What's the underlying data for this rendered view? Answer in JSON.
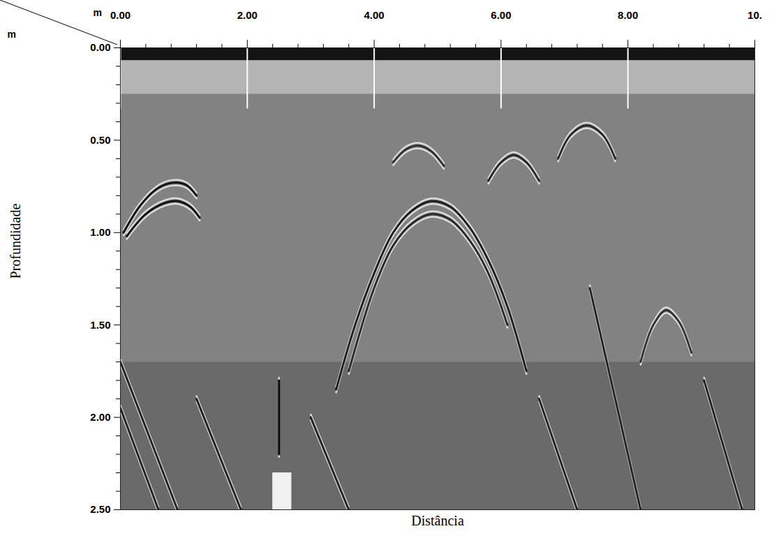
{
  "chart_data": {
    "type": "radargram",
    "x_label": "Distância",
    "y_label": "Profundidade",
    "x_unit": "m",
    "y_unit": "m",
    "xlim": [
      0,
      10
    ],
    "ylim": [
      0,
      2.5
    ],
    "xticks": [
      {
        "value": 0,
        "label": "0.00"
      },
      {
        "value": 2,
        "label": "2.00"
      },
      {
        "value": 4,
        "label": "4.00"
      },
      {
        "value": 6,
        "label": "6.00"
      },
      {
        "value": 8,
        "label": "8.00"
      },
      {
        "value": 10,
        "label": "10."
      }
    ],
    "x_minor_ticks": [
      0.4,
      0.8,
      1.2,
      1.6,
      2.4,
      2.8,
      3.2,
      3.6,
      4.4,
      4.8,
      5.2,
      5.6,
      6.4,
      6.8,
      7.2,
      7.6,
      8.4,
      8.8,
      9.2,
      9.6
    ],
    "yticks": [
      {
        "value": 0,
        "label": "0.00"
      },
      {
        "value": 0.5,
        "label": "0.50"
      },
      {
        "value": 1,
        "label": "1.00"
      },
      {
        "value": 1.5,
        "label": "1.50"
      },
      {
        "value": 2,
        "label": "2.00"
      },
      {
        "value": 2.5,
        "label": "2.50"
      }
    ],
    "y_minor_ticks": [
      0.1,
      0.2,
      0.3,
      0.4,
      0.6,
      0.7,
      0.8,
      0.9,
      1.1,
      1.2,
      1.3,
      1.4,
      1.6,
      1.7,
      1.8,
      1.9,
      2.1,
      2.2,
      2.3,
      2.4
    ],
    "zones": [
      {
        "x": [
          0,
          10
        ],
        "depth": [
          0,
          0.07
        ],
        "color": "#141414"
      },
      {
        "x": [
          0,
          10
        ],
        "depth": [
          0.07,
          0.25
        ],
        "color": "#b4b4b4"
      },
      {
        "x": [
          0,
          10
        ],
        "depth": [
          0.25,
          1.7
        ],
        "color": "#828282"
      },
      {
        "x": [
          0,
          10
        ],
        "depth": [
          1.7,
          2.5
        ],
        "color": "#6a6a6a"
      },
      {
        "x": [
          2.4,
          2.7
        ],
        "depth": [
          2.3,
          2.5
        ],
        "color": "#f0f0f0"
      }
    ],
    "marker_lines": {
      "x": [
        0,
        2,
        4,
        6,
        8
      ],
      "depth": [
        0,
        0.33
      ],
      "color": "#ffffff"
    },
    "reflections": [
      {
        "color": "#111111",
        "points": [
          [
            0.05,
            1.0
          ],
          [
            0.3,
            0.86
          ],
          [
            0.55,
            0.77
          ],
          [
            0.75,
            0.735
          ],
          [
            0.9,
            0.73
          ],
          [
            1.05,
            0.745
          ],
          [
            1.2,
            0.8
          ]
        ]
      },
      {
        "color": "#111111",
        "points": [
          [
            0.1,
            1.02
          ],
          [
            0.4,
            0.9
          ],
          [
            0.7,
            0.84
          ],
          [
            0.9,
            0.83
          ],
          [
            1.1,
            0.86
          ],
          [
            1.25,
            0.92
          ]
        ]
      },
      {
        "color": "#1e1e1e",
        "points": [
          [
            3.4,
            1.85
          ],
          [
            3.7,
            1.5
          ],
          [
            4.0,
            1.22
          ],
          [
            4.3,
            1.0
          ],
          [
            4.6,
            0.88
          ],
          [
            4.9,
            0.83
          ],
          [
            5.2,
            0.86
          ],
          [
            5.5,
            0.97
          ],
          [
            5.8,
            1.15
          ],
          [
            6.1,
            1.4
          ],
          [
            6.4,
            1.75
          ]
        ]
      },
      {
        "color": "#2a2a2a",
        "points": [
          [
            3.6,
            1.75
          ],
          [
            4.0,
            1.3
          ],
          [
            4.3,
            1.07
          ],
          [
            4.6,
            0.95
          ],
          [
            4.9,
            0.9
          ],
          [
            5.2,
            0.93
          ],
          [
            5.5,
            1.04
          ],
          [
            5.8,
            1.22
          ],
          [
            6.1,
            1.5
          ]
        ]
      },
      {
        "color": "#2a2a2a",
        "points": [
          [
            5.8,
            0.72
          ],
          [
            6.0,
            0.62
          ],
          [
            6.2,
            0.58
          ],
          [
            6.4,
            0.62
          ],
          [
            6.6,
            0.72
          ]
        ]
      },
      {
        "color": "#2a2a2a",
        "points": [
          [
            6.9,
            0.6
          ],
          [
            7.1,
            0.47
          ],
          [
            7.35,
            0.42
          ],
          [
            7.6,
            0.47
          ],
          [
            7.8,
            0.6
          ]
        ]
      },
      {
        "color": "#333333",
        "points": [
          [
            4.3,
            0.62
          ],
          [
            4.5,
            0.55
          ],
          [
            4.7,
            0.53
          ],
          [
            4.9,
            0.56
          ],
          [
            5.1,
            0.64
          ]
        ]
      },
      {
        "color": "#333333",
        "points": [
          [
            8.2,
            1.7
          ],
          [
            8.4,
            1.5
          ],
          [
            8.6,
            1.42
          ],
          [
            8.8,
            1.48
          ],
          [
            9.0,
            1.65
          ]
        ]
      },
      {
        "color": "#222222",
        "points": [
          [
            0.0,
            1.7
          ],
          [
            0.9,
            2.5
          ]
        ]
      },
      {
        "color": "#222222",
        "points": [
          [
            0.0,
            1.95
          ],
          [
            0.6,
            2.5
          ]
        ]
      },
      {
        "color": "#222222",
        "points": [
          [
            1.2,
            1.9
          ],
          [
            1.9,
            2.5
          ]
        ]
      },
      {
        "color": "#0a0a0a",
        "points": [
          [
            2.5,
            1.8
          ],
          [
            2.5,
            2.2
          ]
        ]
      },
      {
        "color": "#222222",
        "points": [
          [
            3.0,
            2.0
          ],
          [
            3.6,
            2.5
          ]
        ]
      },
      {
        "color": "#222222",
        "points": [
          [
            6.6,
            1.9
          ],
          [
            7.2,
            2.5
          ]
        ]
      },
      {
        "color": "#222222",
        "points": [
          [
            7.4,
            1.3
          ],
          [
            8.2,
            2.5
          ]
        ]
      },
      {
        "color": "#222222",
        "points": [
          [
            9.2,
            1.8
          ],
          [
            9.8,
            2.5
          ]
        ]
      }
    ]
  }
}
